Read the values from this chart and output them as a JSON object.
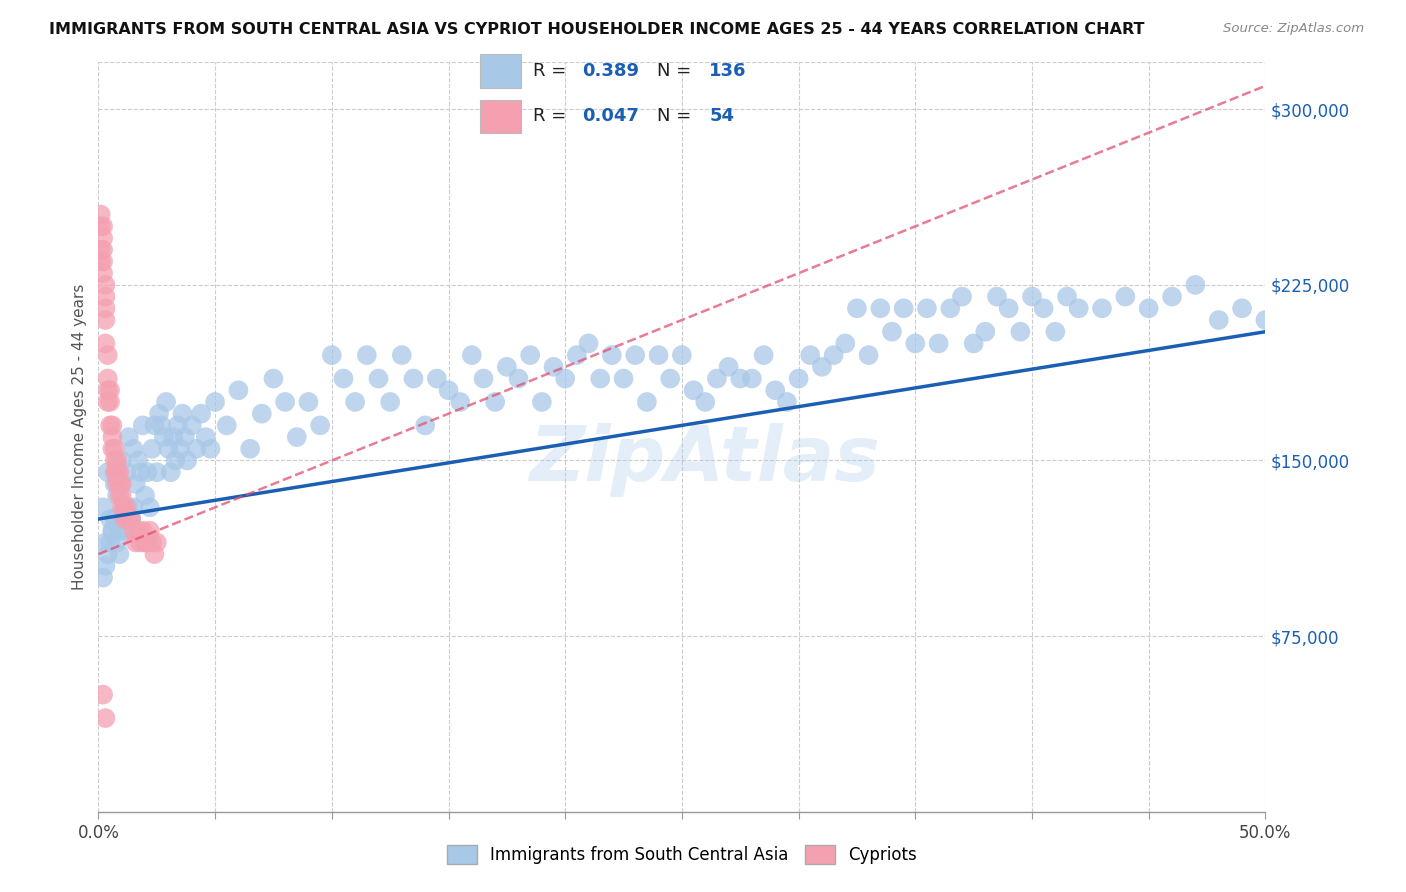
{
  "title": "IMMIGRANTS FROM SOUTH CENTRAL ASIA VS CYPRIOT HOUSEHOLDER INCOME AGES 25 - 44 YEARS CORRELATION CHART",
  "source": "Source: ZipAtlas.com",
  "ylabel": "Householder Income Ages 25 - 44 years",
  "xmin": 0.0,
  "xmax": 0.5,
  "ymin": 0,
  "ymax": 320000,
  "yticks": [
    75000,
    150000,
    225000,
    300000
  ],
  "ytick_labels": [
    "$75,000",
    "$150,000",
    "$225,000",
    "$300,000"
  ],
  "xtick_positions": [
    0.0,
    0.05,
    0.1,
    0.15,
    0.2,
    0.25,
    0.3,
    0.35,
    0.4,
    0.45,
    0.5
  ],
  "xtick_label_positions": [
    0.0,
    0.5
  ],
  "xtick_label_values": [
    "0.0%",
    "50.0%"
  ],
  "blue_color": "#a8c8e8",
  "blue_edge_color": "#a8c8e8",
  "blue_line_color": "#1a5fb4",
  "pink_color": "#f4a0b0",
  "pink_edge_color": "#f4a0b0",
  "pink_line_color": "#e05070",
  "R_blue": 0.389,
  "N_blue": 136,
  "R_pink": 0.047,
  "N_pink": 54,
  "legend_label_blue": "Immigrants from South Central Asia",
  "legend_label_pink": "Cypriots",
  "watermark": "ZipAtlas",
  "blue_line_x0": 0.0,
  "blue_line_y0": 125000,
  "blue_line_x1": 0.5,
  "blue_line_y1": 205000,
  "pink_line_x0": 0.0,
  "pink_line_y0": 110000,
  "pink_line_x1": 0.5,
  "pink_line_y1": 310000,
  "blue_scatter_x": [
    0.002,
    0.003,
    0.004,
    0.005,
    0.006,
    0.007,
    0.008,
    0.009,
    0.01,
    0.011,
    0.012,
    0.013,
    0.014,
    0.015,
    0.016,
    0.017,
    0.018,
    0.019,
    0.02,
    0.021,
    0.022,
    0.023,
    0.024,
    0.025,
    0.026,
    0.027,
    0.028,
    0.029,
    0.03,
    0.031,
    0.032,
    0.033,
    0.034,
    0.035,
    0.036,
    0.037,
    0.038,
    0.04,
    0.042,
    0.044,
    0.046,
    0.048,
    0.05,
    0.055,
    0.06,
    0.065,
    0.07,
    0.075,
    0.08,
    0.085,
    0.09,
    0.095,
    0.1,
    0.105,
    0.11,
    0.115,
    0.12,
    0.125,
    0.13,
    0.135,
    0.14,
    0.145,
    0.15,
    0.155,
    0.16,
    0.165,
    0.17,
    0.175,
    0.18,
    0.185,
    0.19,
    0.195,
    0.2,
    0.205,
    0.21,
    0.215,
    0.22,
    0.225,
    0.23,
    0.235,
    0.24,
    0.245,
    0.25,
    0.255,
    0.26,
    0.265,
    0.27,
    0.275,
    0.28,
    0.285,
    0.29,
    0.295,
    0.3,
    0.305,
    0.31,
    0.315,
    0.32,
    0.325,
    0.33,
    0.335,
    0.34,
    0.345,
    0.35,
    0.355,
    0.36,
    0.365,
    0.37,
    0.375,
    0.38,
    0.385,
    0.39,
    0.395,
    0.4,
    0.405,
    0.41,
    0.415,
    0.42,
    0.43,
    0.44,
    0.45,
    0.46,
    0.47,
    0.48,
    0.49,
    0.5,
    0.002,
    0.003,
    0.004,
    0.005,
    0.006,
    0.007,
    0.008,
    0.009,
    0.01,
    0.011,
    0.012,
    0.013,
    0.014,
    0.015
  ],
  "blue_scatter_y": [
    130000,
    115000,
    145000,
    125000,
    120000,
    140000,
    135000,
    110000,
    150000,
    130000,
    145000,
    160000,
    125000,
    155000,
    140000,
    150000,
    145000,
    165000,
    135000,
    145000,
    130000,
    155000,
    165000,
    145000,
    170000,
    165000,
    160000,
    175000,
    155000,
    145000,
    160000,
    150000,
    165000,
    155000,
    170000,
    160000,
    150000,
    165000,
    155000,
    170000,
    160000,
    155000,
    175000,
    165000,
    180000,
    155000,
    170000,
    185000,
    175000,
    160000,
    175000,
    165000,
    195000,
    185000,
    175000,
    195000,
    185000,
    175000,
    195000,
    185000,
    165000,
    185000,
    180000,
    175000,
    195000,
    185000,
    175000,
    190000,
    185000,
    195000,
    175000,
    190000,
    185000,
    195000,
    200000,
    185000,
    195000,
    185000,
    195000,
    175000,
    195000,
    185000,
    195000,
    180000,
    175000,
    185000,
    190000,
    185000,
    185000,
    195000,
    180000,
    175000,
    185000,
    195000,
    190000,
    195000,
    200000,
    215000,
    195000,
    215000,
    205000,
    215000,
    200000,
    215000,
    200000,
    215000,
    220000,
    200000,
    205000,
    220000,
    215000,
    205000,
    220000,
    215000,
    205000,
    220000,
    215000,
    215000,
    220000,
    215000,
    220000,
    225000,
    210000,
    215000,
    210000,
    100000,
    105000,
    110000,
    115000,
    120000,
    125000,
    115000,
    120000,
    125000,
    120000,
    125000,
    130000,
    125000,
    130000
  ],
  "pink_scatter_x": [
    0.001,
    0.001,
    0.002,
    0.002,
    0.002,
    0.003,
    0.003,
    0.003,
    0.004,
    0.004,
    0.005,
    0.005,
    0.006,
    0.006,
    0.007,
    0.007,
    0.008,
    0.008,
    0.009,
    0.009,
    0.01,
    0.01,
    0.011,
    0.012,
    0.013,
    0.014,
    0.015,
    0.016,
    0.017,
    0.018,
    0.019,
    0.02,
    0.021,
    0.022,
    0.023,
    0.024,
    0.025,
    0.001,
    0.001,
    0.002,
    0.002,
    0.003,
    0.003,
    0.004,
    0.004,
    0.005,
    0.006,
    0.007,
    0.008,
    0.009,
    0.01,
    0.011,
    0.002,
    0.003
  ],
  "pink_scatter_y": [
    255000,
    250000,
    245000,
    250000,
    240000,
    225000,
    215000,
    210000,
    195000,
    185000,
    180000,
    175000,
    165000,
    160000,
    155000,
    150000,
    145000,
    150000,
    140000,
    145000,
    140000,
    135000,
    130000,
    130000,
    125000,
    125000,
    120000,
    115000,
    120000,
    115000,
    120000,
    115000,
    115000,
    120000,
    115000,
    110000,
    115000,
    235000,
    240000,
    230000,
    235000,
    220000,
    200000,
    180000,
    175000,
    165000,
    155000,
    145000,
    140000,
    135000,
    130000,
    125000,
    50000,
    40000
  ]
}
